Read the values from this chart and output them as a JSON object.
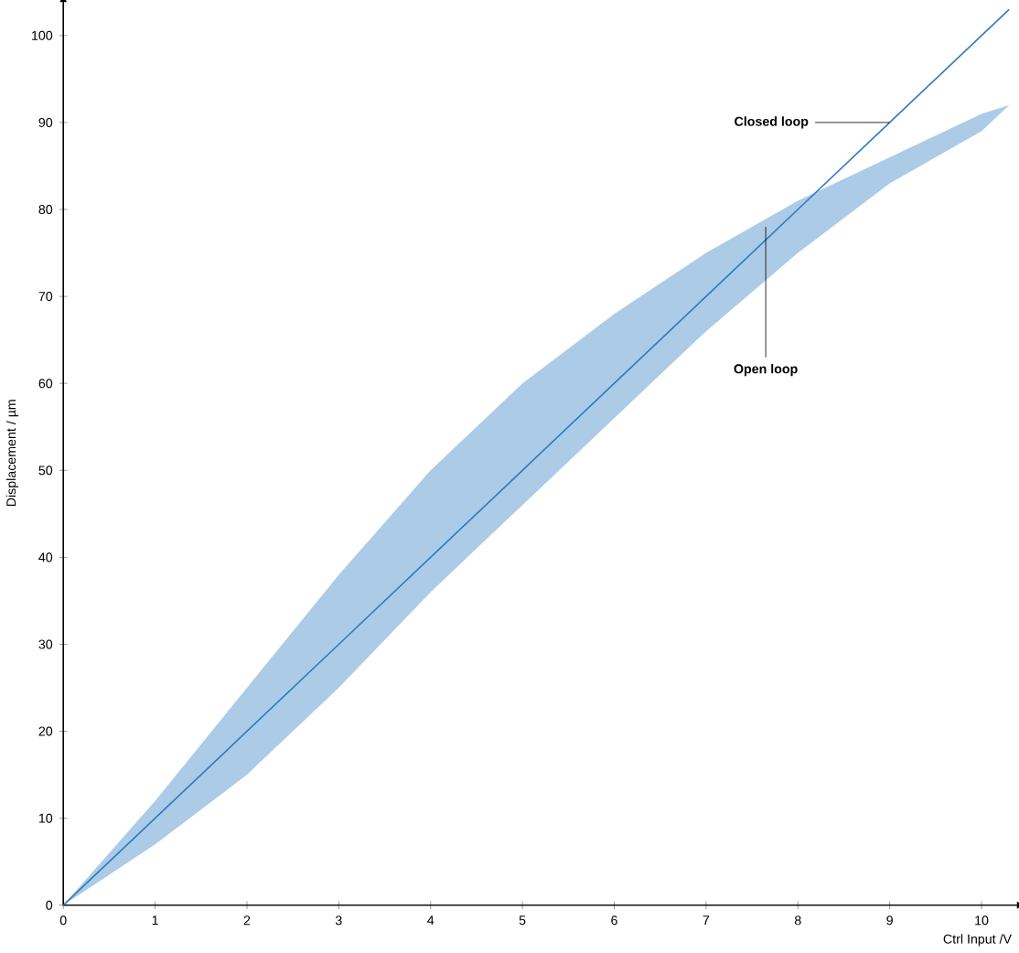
{
  "chart_data": {
    "type": "line",
    "xlabel": "Ctrl Input /V",
    "ylabel": "Displacement / µm",
    "xlim": [
      0,
      10.4
    ],
    "ylim": [
      0,
      104
    ],
    "xticks": [
      0,
      1,
      2,
      3,
      4,
      5,
      6,
      7,
      8,
      9,
      10
    ],
    "yticks": [
      0,
      10,
      20,
      30,
      40,
      50,
      60,
      70,
      80,
      90,
      100
    ],
    "series": [
      {
        "color": "#2f7cc0",
        "x": [
          0,
          1,
          2,
          3,
          4,
          5,
          6,
          7,
          8,
          9,
          10,
          10.3
        ],
        "values": [
          0,
          10,
          20,
          30,
          40,
          50,
          60,
          70,
          80,
          90,
          100,
          103
        ],
        "lower": [
          0,
          7,
          15,
          25,
          36,
          46,
          56,
          66,
          75,
          83,
          89,
          92
        ],
        "upper": [
          0,
          12,
          25,
          38,
          50,
          60,
          68,
          75,
          81,
          86,
          91,
          92
        ]
      }
    ],
    "annotations": [
      {
        "text": "Closed loop",
        "x": 9,
        "y": 90
      },
      {
        "text": "Open loop",
        "x": 7.65,
        "y": 78
      }
    ],
    "grid": false
  }
}
